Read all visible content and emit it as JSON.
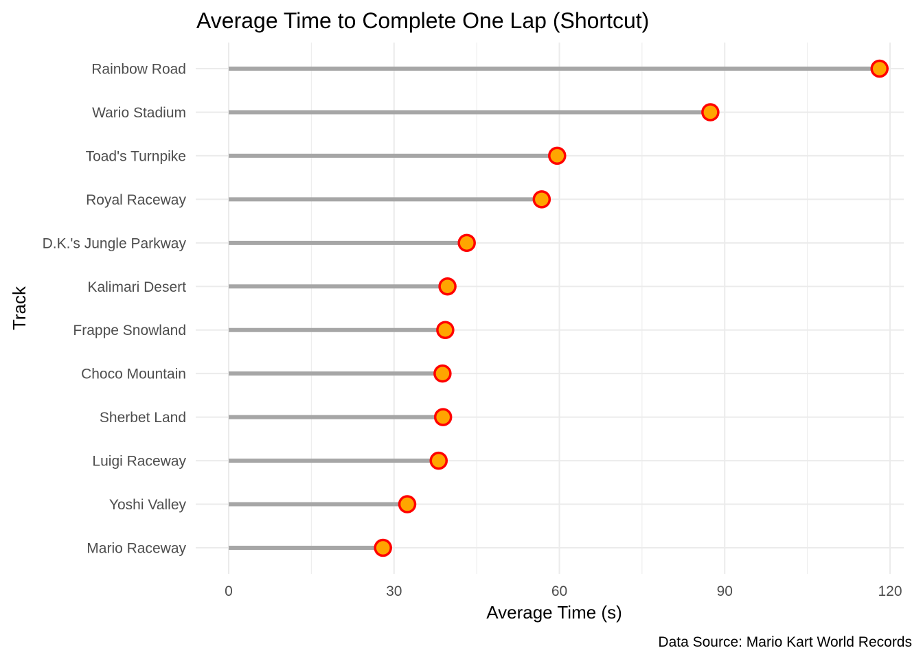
{
  "chart_data": {
    "type": "lollipop",
    "title": "Average Time to Complete One Lap (Shortcut)",
    "xlabel": "Average Time (s)",
    "ylabel": "Track",
    "caption": "Data Source: Mario Kart World Records",
    "xlim": [
      -3,
      122
    ],
    "x_ticks": [
      0,
      30,
      60,
      90,
      120
    ],
    "grid": true,
    "colors": {
      "stem": "#a6a6a6",
      "point_fill": "#ffa500",
      "point_stroke": "#ff0000",
      "grid": "#ebebeb"
    },
    "categories": [
      "Rainbow Road",
      "Wario Stadium",
      "Toad's Turnpike",
      "Royal Raceway",
      "D.K.'s Jungle Parkway",
      "Kalimari Desert",
      "Frappe Snowland",
      "Choco Mountain",
      "Sherbet Land",
      "Luigi Raceway",
      "Yoshi Valley",
      "Mario Raceway"
    ],
    "values": [
      118.1,
      87.4,
      59.6,
      56.8,
      43.2,
      39.7,
      39.3,
      38.8,
      38.9,
      38.1,
      32.4,
      28.0
    ]
  }
}
